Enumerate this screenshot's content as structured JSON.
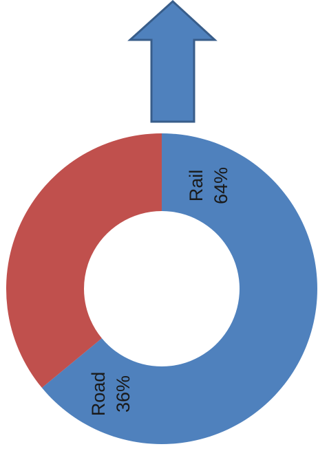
{
  "colors": {
    "arrow_fill": "#4f81bd",
    "arrow_stroke": "#385d8a",
    "rail": "#4f81bd",
    "road": "#c0504d",
    "label": "#1a1a1a"
  },
  "icons": {
    "arrow": "up-arrow-icon"
  },
  "chart_data": {
    "type": "pie",
    "variant": "donut",
    "title": "",
    "start_angle_deg": 270,
    "direction": "clockwise",
    "label_rotation_deg": -90,
    "slices": [
      {
        "name": "Rail",
        "value": 64,
        "percent_label": "64%",
        "color": "#4f81bd"
      },
      {
        "name": "Road",
        "value": 36,
        "percent_label": "36%",
        "color": "#c0504d"
      }
    ]
  }
}
